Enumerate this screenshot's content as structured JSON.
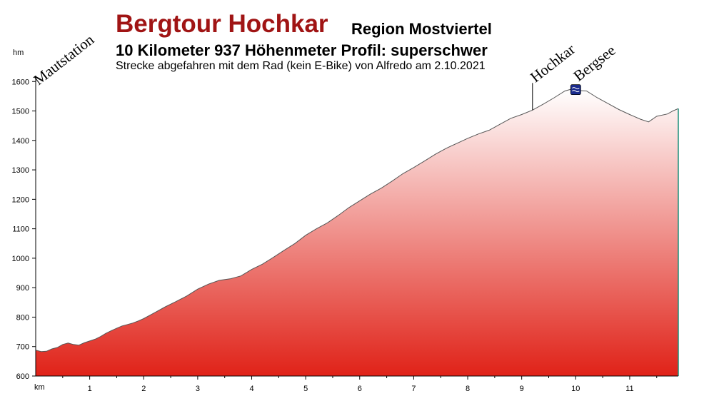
{
  "header": {
    "title": "Bergtour Hochkar",
    "region": "Region Mostviertel",
    "subtitle": "10 Kilometer  937 Höhenmeter  Profil: superschwer",
    "note": "Strecke abgefahren mit dem Rad (kein E-Bike) von Alfredo am 2.10.2021"
  },
  "chart_data": {
    "type": "area",
    "ylabel": "hm",
    "xlabel": "km",
    "xlim": [
      0,
      11.9
    ],
    "ylim": [
      600,
      1620
    ],
    "y_ticks": [
      600,
      700,
      800,
      900,
      1000,
      1100,
      1200,
      1300,
      1400,
      1500,
      1600
    ],
    "x_ticks": [
      1,
      2,
      3,
      4,
      5,
      6,
      7,
      8,
      9,
      10,
      11
    ],
    "grid": false,
    "colors": {
      "fill_top": "#ffffff",
      "fill_bottom": "#e02218",
      "outline": "#555555",
      "marker": "#1a2a8c"
    },
    "profile": [
      [
        0,
        688
      ],
      [
        0.1,
        683
      ],
      [
        0.2,
        684
      ],
      [
        0.3,
        692
      ],
      [
        0.4,
        697
      ],
      [
        0.5,
        707
      ],
      [
        0.6,
        712
      ],
      [
        0.7,
        707
      ],
      [
        0.8,
        705
      ],
      [
        0.9,
        713
      ],
      [
        1.0,
        719
      ],
      [
        1.1,
        725
      ],
      [
        1.2,
        734
      ],
      [
        1.3,
        745
      ],
      [
        1.4,
        754
      ],
      [
        1.5,
        762
      ],
      [
        1.6,
        770
      ],
      [
        1.7,
        775
      ],
      [
        1.8,
        780
      ],
      [
        1.9,
        787
      ],
      [
        2.0,
        795
      ],
      [
        2.2,
        815
      ],
      [
        2.4,
        835
      ],
      [
        2.6,
        853
      ],
      [
        2.8,
        872
      ],
      [
        3.0,
        895
      ],
      [
        3.2,
        912
      ],
      [
        3.4,
        925
      ],
      [
        3.6,
        930
      ],
      [
        3.8,
        940
      ],
      [
        4.0,
        962
      ],
      [
        4.2,
        980
      ],
      [
        4.4,
        1003
      ],
      [
        4.6,
        1027
      ],
      [
        4.8,
        1050
      ],
      [
        5.0,
        1078
      ],
      [
        5.2,
        1100
      ],
      [
        5.4,
        1120
      ],
      [
        5.6,
        1145
      ],
      [
        5.8,
        1172
      ],
      [
        6.0,
        1195
      ],
      [
        6.2,
        1218
      ],
      [
        6.4,
        1238
      ],
      [
        6.6,
        1262
      ],
      [
        6.8,
        1287
      ],
      [
        7.0,
        1308
      ],
      [
        7.2,
        1330
      ],
      [
        7.4,
        1353
      ],
      [
        7.6,
        1373
      ],
      [
        7.8,
        1390
      ],
      [
        8.0,
        1407
      ],
      [
        8.2,
        1422
      ],
      [
        8.4,
        1435
      ],
      [
        8.6,
        1455
      ],
      [
        8.8,
        1475
      ],
      [
        9.0,
        1488
      ],
      [
        9.2,
        1503
      ],
      [
        9.4,
        1523
      ],
      [
        9.6,
        1545
      ],
      [
        9.8,
        1568
      ],
      [
        9.9,
        1573
      ],
      [
        10.0,
        1570
      ],
      [
        10.2,
        1568
      ],
      [
        10.4,
        1545
      ],
      [
        10.6,
        1525
      ],
      [
        10.8,
        1505
      ],
      [
        11.0,
        1488
      ],
      [
        11.2,
        1472
      ],
      [
        11.35,
        1463
      ],
      [
        11.5,
        1482
      ],
      [
        11.7,
        1490
      ],
      [
        11.8,
        1500
      ],
      [
        11.9,
        1508
      ]
    ],
    "waypoints": [
      {
        "label": "Mautstation",
        "km": 0
      },
      {
        "label": "Hochkar",
        "km": 9.2
      },
      {
        "label": "Bergsee",
        "km": 10.0,
        "icon": "lake-icon"
      }
    ]
  }
}
